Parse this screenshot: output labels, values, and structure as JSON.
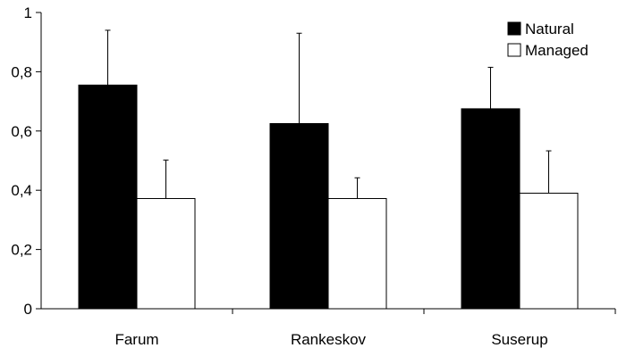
{
  "chart_data": {
    "type": "bar",
    "categories": [
      "Farum",
      "Rankeskov",
      "Suserup"
    ],
    "series": [
      {
        "name": "Natural",
        "values": [
          0.755,
          0.625,
          0.675
        ],
        "errors": [
          0.185,
          0.305,
          0.14
        ],
        "color": "#000000"
      },
      {
        "name": "Managed",
        "values": [
          0.372,
          0.372,
          0.39
        ],
        "errors": [
          0.13,
          0.07,
          0.143
        ],
        "color": "#ffffff"
      }
    ],
    "ylim": [
      0,
      1
    ],
    "yticks": [
      0,
      0.2,
      0.4,
      0.6,
      0.8,
      1
    ],
    "ytick_labels": [
      "0",
      "0,2",
      "0,4",
      "0,6",
      "0,8",
      "1"
    ],
    "title": "",
    "xlabel": "",
    "ylabel": "",
    "grid": false,
    "legend_position": "top-right",
    "error_bars": "upper only"
  }
}
